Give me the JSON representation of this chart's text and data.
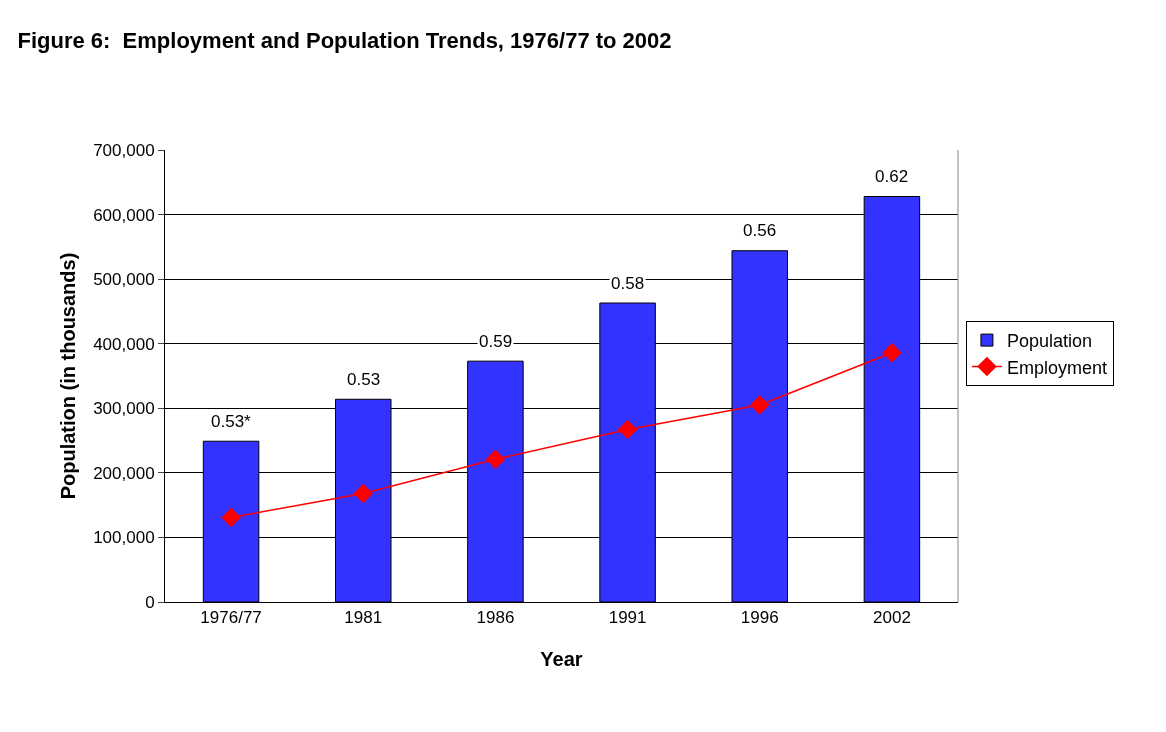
{
  "chart_data": {
    "type": "bar",
    "title": "Figure 6:  Employment and Population Trends, 1976/77 to 2002",
    "xlabel": "Year",
    "ylabel": "Population (in thousands)",
    "categories": [
      "1976/77",
      "1981",
      "1986",
      "1991",
      "1996",
      "2002"
    ],
    "series": [
      {
        "name": "Population",
        "color": "#3333ff",
        "values": [
          249000,
          314000,
          373000,
          463000,
          544000,
          628000
        ]
      },
      {
        "name": "Employment",
        "type": "line",
        "color": "#ff0000",
        "marker": "diamond",
        "values": [
          131000,
          168000,
          221000,
          267000,
          305000,
          386000
        ]
      }
    ],
    "ylim": [
      0,
      700000
    ],
    "yticks": [
      {
        "value": 0,
        "label": "0"
      },
      {
        "value": 100000,
        "label": "100,000"
      },
      {
        "value": 200000,
        "label": "200,000"
      },
      {
        "value": 300000,
        "label": "300,000"
      },
      {
        "value": 400000,
        "label": "400,000"
      },
      {
        "value": 500000,
        "label": "500,000"
      },
      {
        "value": 600000,
        "label": "600,000"
      },
      {
        "value": 700000,
        "label": "700,000"
      }
    ],
    "annotations": [
      {
        "text": "0.53*",
        "x": "1976/77",
        "y": 249000
      },
      {
        "text": "0.53",
        "x": "1981",
        "y": 314000
      },
      {
        "text": "0.59",
        "x": "1986",
        "y": 373000
      },
      {
        "text": "0.58",
        "x": "1991",
        "y": 463000
      },
      {
        "text": "0.56",
        "x": "1996",
        "y": 544000
      },
      {
        "text": "0.62",
        "x": "2002",
        "y": 628000
      }
    ],
    "grid": "y",
    "legend": "right"
  }
}
